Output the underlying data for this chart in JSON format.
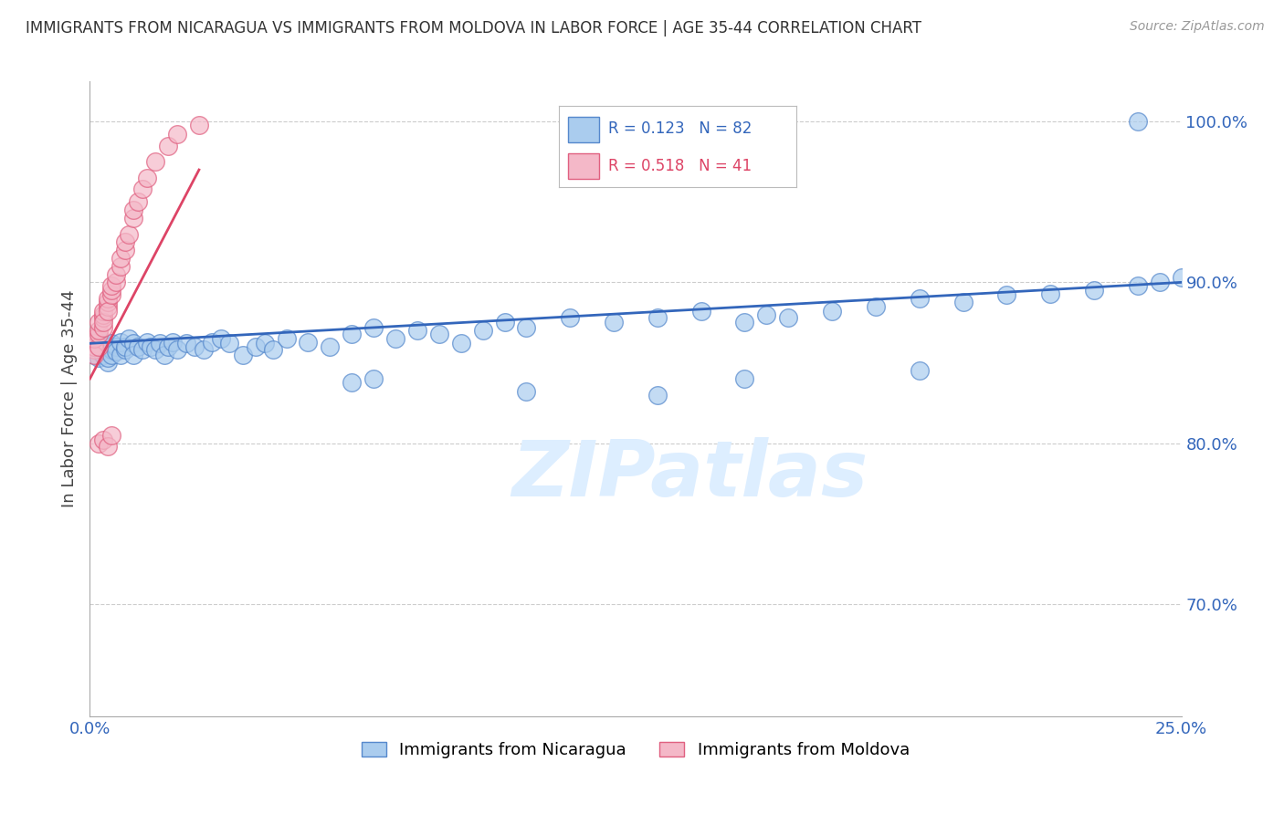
{
  "title": "IMMIGRANTS FROM NICARAGUA VS IMMIGRANTS FROM MOLDOVA IN LABOR FORCE | AGE 35-44 CORRELATION CHART",
  "source": "Source: ZipAtlas.com",
  "ylabel": "In Labor Force | Age 35-44",
  "xlim": [
    0.0,
    0.25
  ],
  "ylim": [
    0.63,
    1.025
  ],
  "xticks": [
    0.0,
    0.05,
    0.1,
    0.15,
    0.2,
    0.25
  ],
  "xticklabels": [
    "0.0%",
    "",
    "",
    "",
    "",
    "25.0%"
  ],
  "yticks": [
    0.7,
    0.8,
    0.9,
    1.0
  ],
  "yticklabels": [
    "70.0%",
    "80.0%",
    "90.0%",
    "100.0%"
  ],
  "nicaragua_color": "#aaccee",
  "moldova_color": "#f4b8c8",
  "nicaragua_edge": "#5588cc",
  "moldova_edge": "#e06080",
  "trend_nicaragua_color": "#3366bb",
  "trend_moldova_color": "#dd4466",
  "watermark_color": "#ddeeff",
  "nicaragua_R": 0.123,
  "nicaragua_N": 82,
  "moldova_R": 0.518,
  "moldova_N": 41,
  "nicaragua_x": [
    0.001,
    0.001,
    0.001,
    0.001,
    0.002,
    0.002,
    0.002,
    0.002,
    0.003,
    0.003,
    0.003,
    0.004,
    0.004,
    0.004,
    0.005,
    0.005,
    0.005,
    0.006,
    0.006,
    0.007,
    0.007,
    0.008,
    0.008,
    0.009,
    0.01,
    0.01,
    0.011,
    0.012,
    0.013,
    0.014,
    0.015,
    0.016,
    0.017,
    0.018,
    0.019,
    0.02,
    0.022,
    0.024,
    0.026,
    0.028,
    0.03,
    0.032,
    0.035,
    0.038,
    0.04,
    0.042,
    0.045,
    0.05,
    0.055,
    0.06,
    0.065,
    0.07,
    0.075,
    0.08,
    0.085,
    0.09,
    0.095,
    0.1,
    0.11,
    0.12,
    0.13,
    0.14,
    0.15,
    0.155,
    0.16,
    0.17,
    0.18,
    0.19,
    0.2,
    0.21,
    0.22,
    0.23,
    0.24,
    0.245,
    0.25,
    0.06,
    0.065,
    0.15,
    0.19,
    0.24,
    0.1,
    0.13
  ],
  "nicaragua_y": [
    0.86,
    0.862,
    0.858,
    0.855,
    0.857,
    0.853,
    0.86,
    0.865,
    0.862,
    0.855,
    0.858,
    0.85,
    0.853,
    0.86,
    0.858,
    0.855,
    0.862,
    0.86,
    0.857,
    0.855,
    0.863,
    0.858,
    0.86,
    0.865,
    0.862,
    0.855,
    0.86,
    0.858,
    0.863,
    0.86,
    0.858,
    0.862,
    0.855,
    0.86,
    0.863,
    0.858,
    0.862,
    0.86,
    0.858,
    0.863,
    0.865,
    0.862,
    0.855,
    0.86,
    0.862,
    0.858,
    0.865,
    0.863,
    0.86,
    0.868,
    0.872,
    0.865,
    0.87,
    0.868,
    0.862,
    0.87,
    0.875,
    0.872,
    0.878,
    0.875,
    0.878,
    0.882,
    0.875,
    0.88,
    0.878,
    0.882,
    0.885,
    0.89,
    0.888,
    0.892,
    0.893,
    0.895,
    0.898,
    0.9,
    0.903,
    0.838,
    0.84,
    0.84,
    0.845,
    1.0,
    0.832,
    0.83
  ],
  "moldova_x": [
    0.001,
    0.001,
    0.001,
    0.001,
    0.001,
    0.002,
    0.002,
    0.002,
    0.002,
    0.003,
    0.003,
    0.003,
    0.003,
    0.003,
    0.004,
    0.004,
    0.004,
    0.004,
    0.005,
    0.005,
    0.005,
    0.006,
    0.006,
    0.007,
    0.007,
    0.008,
    0.008,
    0.009,
    0.01,
    0.01,
    0.011,
    0.012,
    0.013,
    0.015,
    0.018,
    0.02,
    0.025,
    0.002,
    0.003,
    0.004,
    0.005
  ],
  "moldova_y": [
    0.858,
    0.862,
    0.86,
    0.855,
    0.865,
    0.86,
    0.868,
    0.87,
    0.875,
    0.872,
    0.878,
    0.88,
    0.882,
    0.875,
    0.885,
    0.888,
    0.89,
    0.882,
    0.892,
    0.895,
    0.898,
    0.9,
    0.905,
    0.91,
    0.915,
    0.92,
    0.925,
    0.93,
    0.94,
    0.945,
    0.95,
    0.958,
    0.965,
    0.975,
    0.985,
    0.992,
    0.998,
    0.8,
    0.802,
    0.798,
    0.805
  ]
}
